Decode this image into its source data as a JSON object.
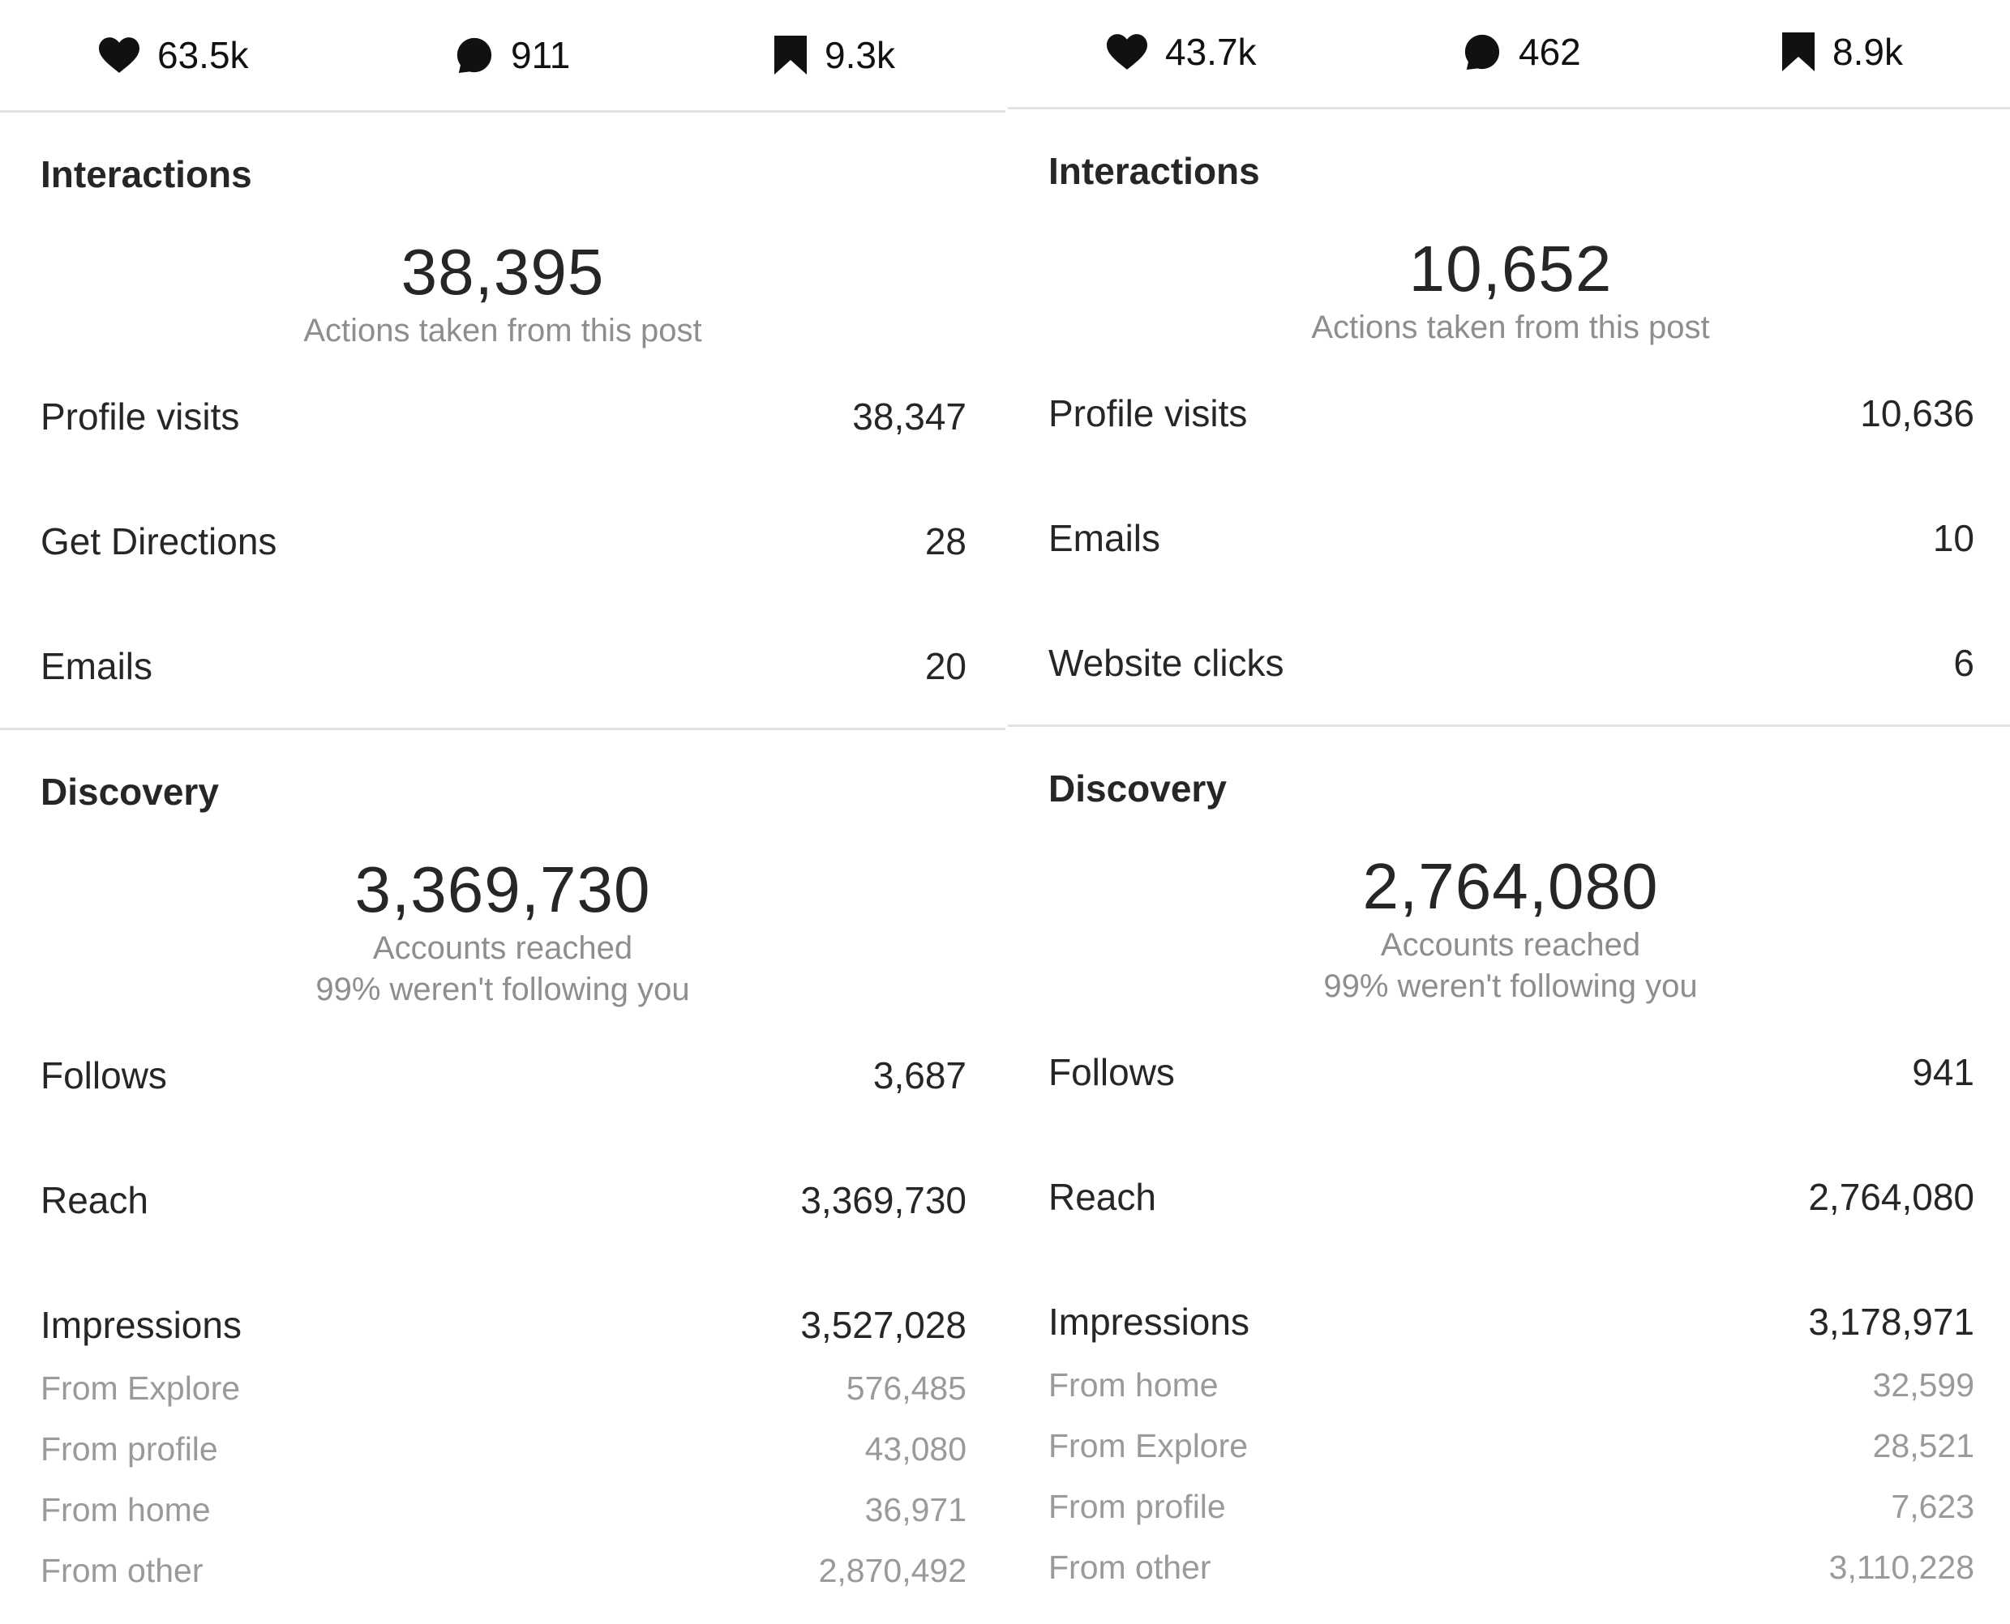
{
  "panels": [
    {
      "stats": {
        "likes": "63.5k",
        "comments": "911",
        "saves": "9.3k"
      },
      "interactions": {
        "title": "Interactions",
        "total": "38,395",
        "caption": "Actions taken from this post",
        "rows": [
          {
            "label": "Profile visits",
            "value": "38,347"
          },
          {
            "label": "Get Directions",
            "value": "28"
          },
          {
            "label": "Emails",
            "value": "20"
          }
        ]
      },
      "discovery": {
        "title": "Discovery",
        "total": "3,369,730",
        "caption": "Accounts reached",
        "caption2": "99% weren't following you",
        "rows": [
          {
            "label": "Follows",
            "value": "3,687"
          },
          {
            "label": "Reach",
            "value": "3,369,730"
          },
          {
            "label": "Impressions",
            "value": "3,527,028"
          }
        ],
        "sources": [
          {
            "label": "From Explore",
            "value": "576,485"
          },
          {
            "label": "From profile",
            "value": "43,080"
          },
          {
            "label": "From home",
            "value": "36,971"
          },
          {
            "label": "From other",
            "value": "2,870,492"
          }
        ]
      }
    },
    {
      "stats": {
        "likes": "43.7k",
        "comments": "462",
        "saves": "8.9k"
      },
      "interactions": {
        "title": "Interactions",
        "total": "10,652",
        "caption": "Actions taken from this post",
        "rows": [
          {
            "label": "Profile visits",
            "value": "10,636"
          },
          {
            "label": "Emails",
            "value": "10"
          },
          {
            "label": "Website clicks",
            "value": "6"
          }
        ]
      },
      "discovery": {
        "title": "Discovery",
        "total": "2,764,080",
        "caption": "Accounts reached",
        "caption2": "99% weren't following you",
        "rows": [
          {
            "label": "Follows",
            "value": "941"
          },
          {
            "label": "Reach",
            "value": "2,764,080"
          },
          {
            "label": "Impressions",
            "value": "3,178,971"
          }
        ],
        "sources": [
          {
            "label": "From home",
            "value": "32,599"
          },
          {
            "label": "From Explore",
            "value": "28,521"
          },
          {
            "label": "From profile",
            "value": "7,623"
          },
          {
            "label": "From other",
            "value": "3,110,228"
          }
        ]
      }
    }
  ],
  "icons": {
    "likes": "heart-icon",
    "comments": "comment-bubble-icon",
    "saves": "bookmark-icon"
  }
}
